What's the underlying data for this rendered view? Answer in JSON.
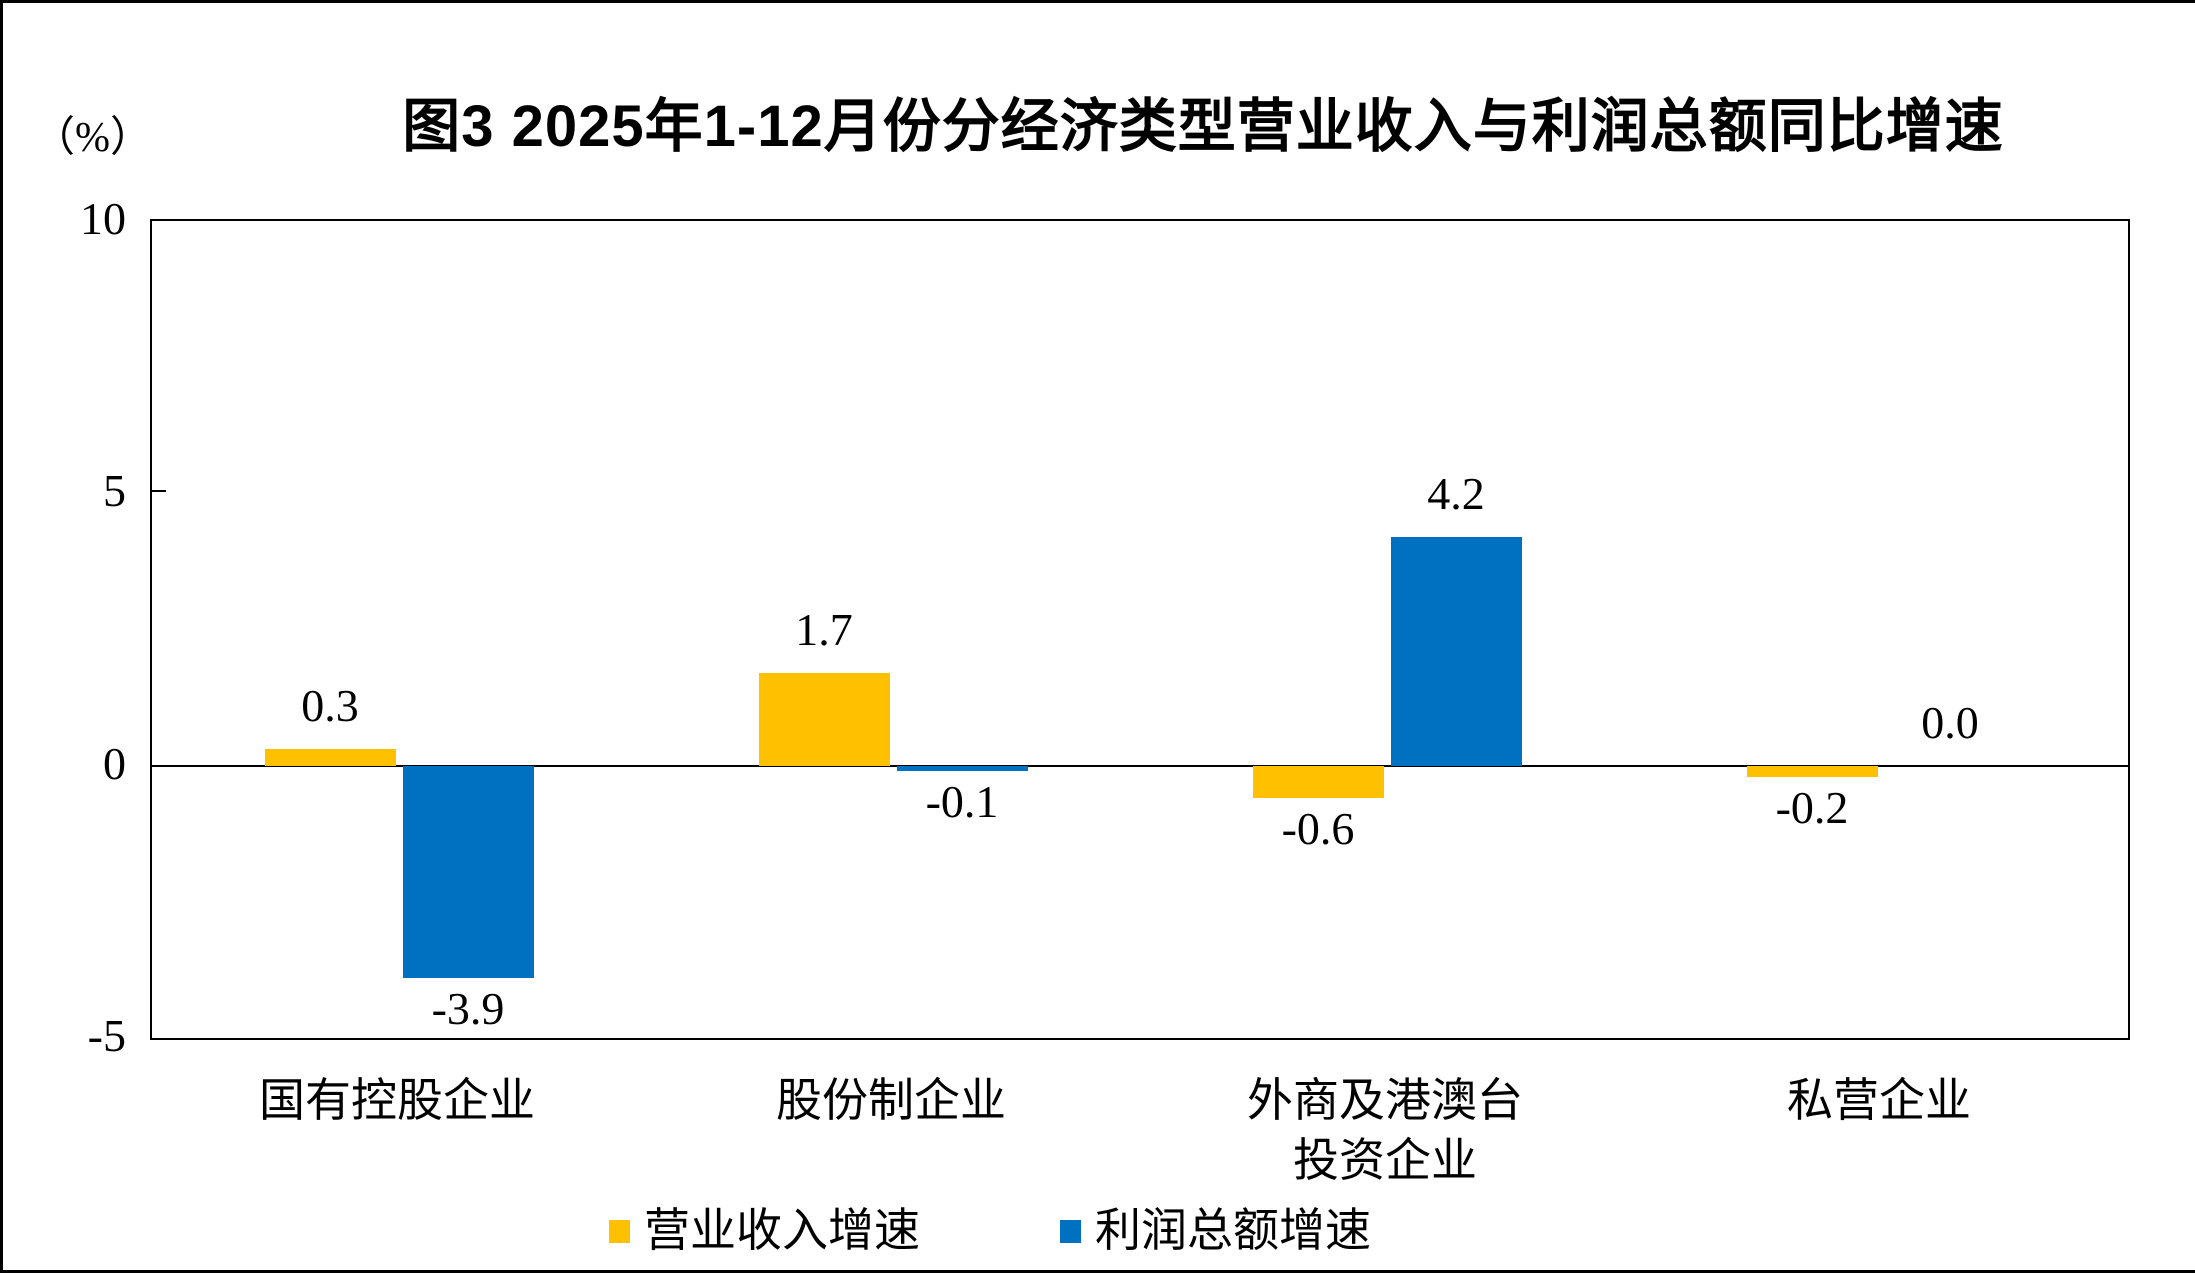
{
  "chart_data": {
    "type": "bar",
    "title": "图3  2025年1-12月份分经济类型营业收入与利润总额同比增速",
    "ylabel": "（%）",
    "categories": [
      "国有控股企业",
      "股份制企业",
      "外商及港澳台\n投资企业",
      "私营企业"
    ],
    "series": [
      {
        "name": "营业收入增速",
        "color": "#FFC000",
        "values": [
          0.3,
          1.7,
          -0.6,
          -0.2
        ],
        "labels": [
          "0.3",
          "1.7",
          "-0.6",
          "-0.2"
        ]
      },
      {
        "name": "利润总额增速",
        "color": "#0070C0",
        "values": [
          -3.9,
          -0.1,
          4.2,
          0.0
        ],
        "labels": [
          "-3.9",
          "-0.1",
          "4.2",
          "0.0"
        ]
      }
    ],
    "ylim": [
      -5,
      10
    ],
    "yticks": [
      "10",
      "5",
      "0",
      "-5"
    ],
    "ytick_values": [
      10,
      5,
      0,
      -5
    ],
    "grid": false,
    "legend_position": "bottom"
  }
}
